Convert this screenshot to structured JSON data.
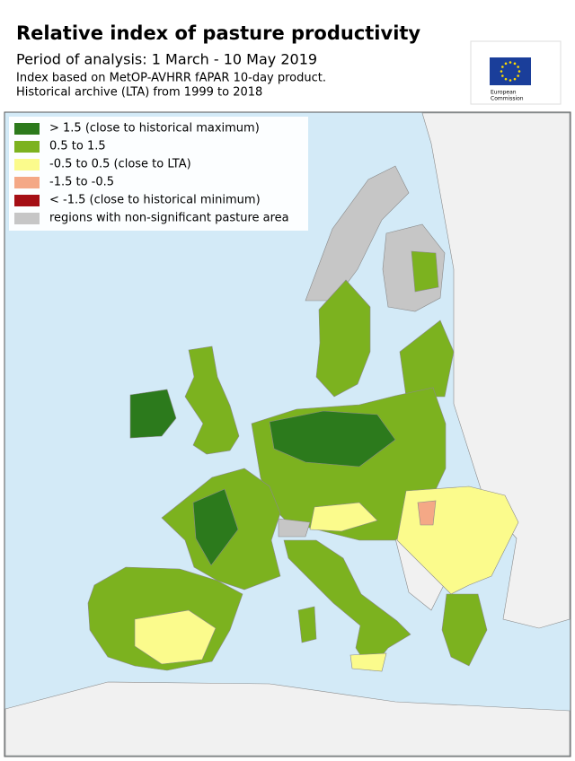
{
  "header": {
    "title": "Relative index of pasture productivity",
    "period": "Period of analysis: 1 March - 10 May 2019",
    "notes": [
      "Index based on MetOP-AVHRR fAPAR 10-day product.",
      "Historical archive (LTA) from 1999 to 2018"
    ]
  },
  "logo": {
    "lines": [
      "European",
      "Commission"
    ]
  },
  "legend": {
    "items": [
      {
        "label": "> 1.5 (close to historical maximum)",
        "color": "#2c7a1c"
      },
      {
        "label": "0.5 to 1.5",
        "color": "#7cb21f"
      },
      {
        "label": "-0.5 to 0.5 (close to LTA)",
        "color": "#fbfb8c"
      },
      {
        "label": "-1.5 to -0.5",
        "color": "#f4a886"
      },
      {
        "label": "< -1.5 (close to historical minimum)",
        "color": "#a50f15"
      },
      {
        "label": "regions with non-significant pasture area",
        "color": "#c6c6c6"
      }
    ]
  }
}
